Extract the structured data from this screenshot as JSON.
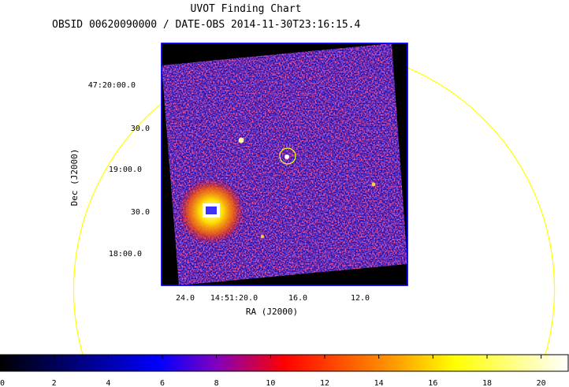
{
  "header": {
    "title": "UVOT Finding Chart",
    "subtitle": "OBSID 00620090000 / DATE-OBS 2014-11-30T23:16:15.4"
  },
  "chart_data": {
    "type": "heatmap",
    "title": "UVOT Finding Chart",
    "subtitle": "OBSID 00620090000 / DATE-OBS 2014-11-30T23:16:15.4",
    "xlabel": "RA (J2000)",
    "ylabel": "Dec (J2000)",
    "x_tick_labels": [
      "24.0",
      "14:51:20.0",
      "16.0",
      "12.0"
    ],
    "y_tick_labels": [
      "47:20:00.0",
      "30.0",
      "19:00.0",
      "30.0",
      "18:00.0"
    ],
    "colorbar": {
      "ticks": [
        0,
        2,
        4,
        6,
        8,
        10,
        12,
        14,
        16,
        18,
        20
      ],
      "range": [
        0,
        21
      ],
      "colormap": [
        "#000000",
        "#0000ff",
        "#ff0000",
        "#ffff00",
        "#ffffff"
      ]
    },
    "image_background_color": "#d01a50",
    "frame_color": "#0000ff",
    "overlay_color": "#ffff00",
    "marked_source": "circled point source",
    "bright_source": "saturated bright source"
  }
}
